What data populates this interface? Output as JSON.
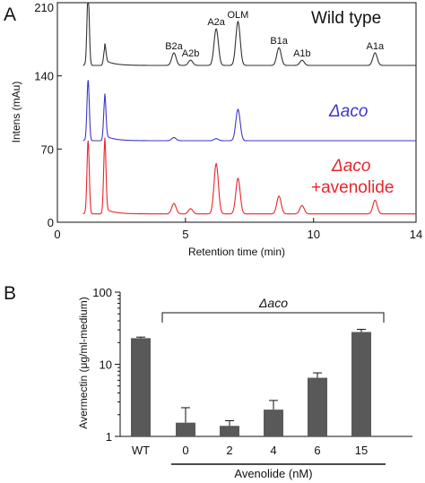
{
  "chart_data": [
    {
      "panel": "A",
      "type": "line",
      "xlabel": "Retention time (min)",
      "ylabel": "Intens (mAu)",
      "xlim": [
        0,
        14
      ],
      "x_ticks": [
        "0",
        "5",
        "10",
        "14"
      ],
      "y_ticks": [
        "210",
        "140",
        "70",
        "0"
      ],
      "series": [
        {
          "name": "Wild type",
          "color": "#333333",
          "baseline_mAU": 150,
          "peaks": [
            {
              "label": "",
              "rt": 1.2,
              "height_mAU": 70
            },
            {
              "label": "",
              "rt": 1.85,
              "height_mAU": 16
            },
            {
              "label": "B2a",
              "rt": 4.55,
              "height_mAU": 12
            },
            {
              "label": "A2b",
              "rt": 5.2,
              "height_mAU": 5
            },
            {
              "label": "A2a",
              "rt": 6.2,
              "height_mAU": 35
            },
            {
              "label": "OLM",
              "rt": 7.05,
              "height_mAU": 42
            },
            {
              "label": "B1a",
              "rt": 8.65,
              "height_mAU": 17
            },
            {
              "label": "A1b",
              "rt": 9.55,
              "height_mAU": 5
            },
            {
              "label": "A1a",
              "rt": 12.4,
              "height_mAU": 12
            }
          ]
        },
        {
          "name": "Δaco",
          "color": "#3f36c8",
          "baseline_mAU": 78,
          "peaks": [
            {
              "rt": 1.2,
              "height_mAU": 58
            },
            {
              "rt": 1.85,
              "height_mAU": 40
            },
            {
              "rt": 4.55,
              "height_mAU": 3
            },
            {
              "rt": 6.2,
              "height_mAU": 2
            },
            {
              "rt": 7.05,
              "height_mAU": 30
            }
          ]
        },
        {
          "name": "Δaco +avenolide",
          "color": "#e8262e",
          "baseline_mAU": 8,
          "peaks": [
            {
              "rt": 1.2,
              "height_mAU": 70
            },
            {
              "rt": 1.85,
              "height_mAU": 68
            },
            {
              "rt": 4.55,
              "height_mAU": 10
            },
            {
              "rt": 5.2,
              "height_mAU": 5
            },
            {
              "rt": 6.2,
              "height_mAU": 48
            },
            {
              "rt": 7.05,
              "height_mAU": 34
            },
            {
              "rt": 8.65,
              "height_mAU": 17
            },
            {
              "rt": 9.55,
              "height_mAU": 8
            },
            {
              "rt": 12.4,
              "height_mAU": 13
            }
          ]
        }
      ],
      "legend_labels": {
        "wt": "Wild type",
        "aco": "Δaco",
        "aco_av1": "Δaco",
        "aco_av2": "+avenolide"
      }
    },
    {
      "panel": "B",
      "type": "bar",
      "ylabel": "Avermectin (μg/ml-medium)",
      "yscale": "log",
      "ylim": [
        1,
        100
      ],
      "y_ticks": [
        "100",
        "10",
        "1"
      ],
      "categories": [
        "WT",
        "0",
        "2",
        "4",
        "6",
        "15"
      ],
      "values": [
        23,
        1.55,
        1.4,
        2.35,
        6.5,
        28
      ],
      "errors": [
        0.8,
        0.95,
        0.25,
        0.8,
        1.1,
        2.5
      ],
      "bar_color": "#595959",
      "bracket_label": "Δaco",
      "xlabel": "Avenolide (nM)"
    }
  ],
  "panel_labels": {
    "a": "A",
    "b": "B"
  }
}
